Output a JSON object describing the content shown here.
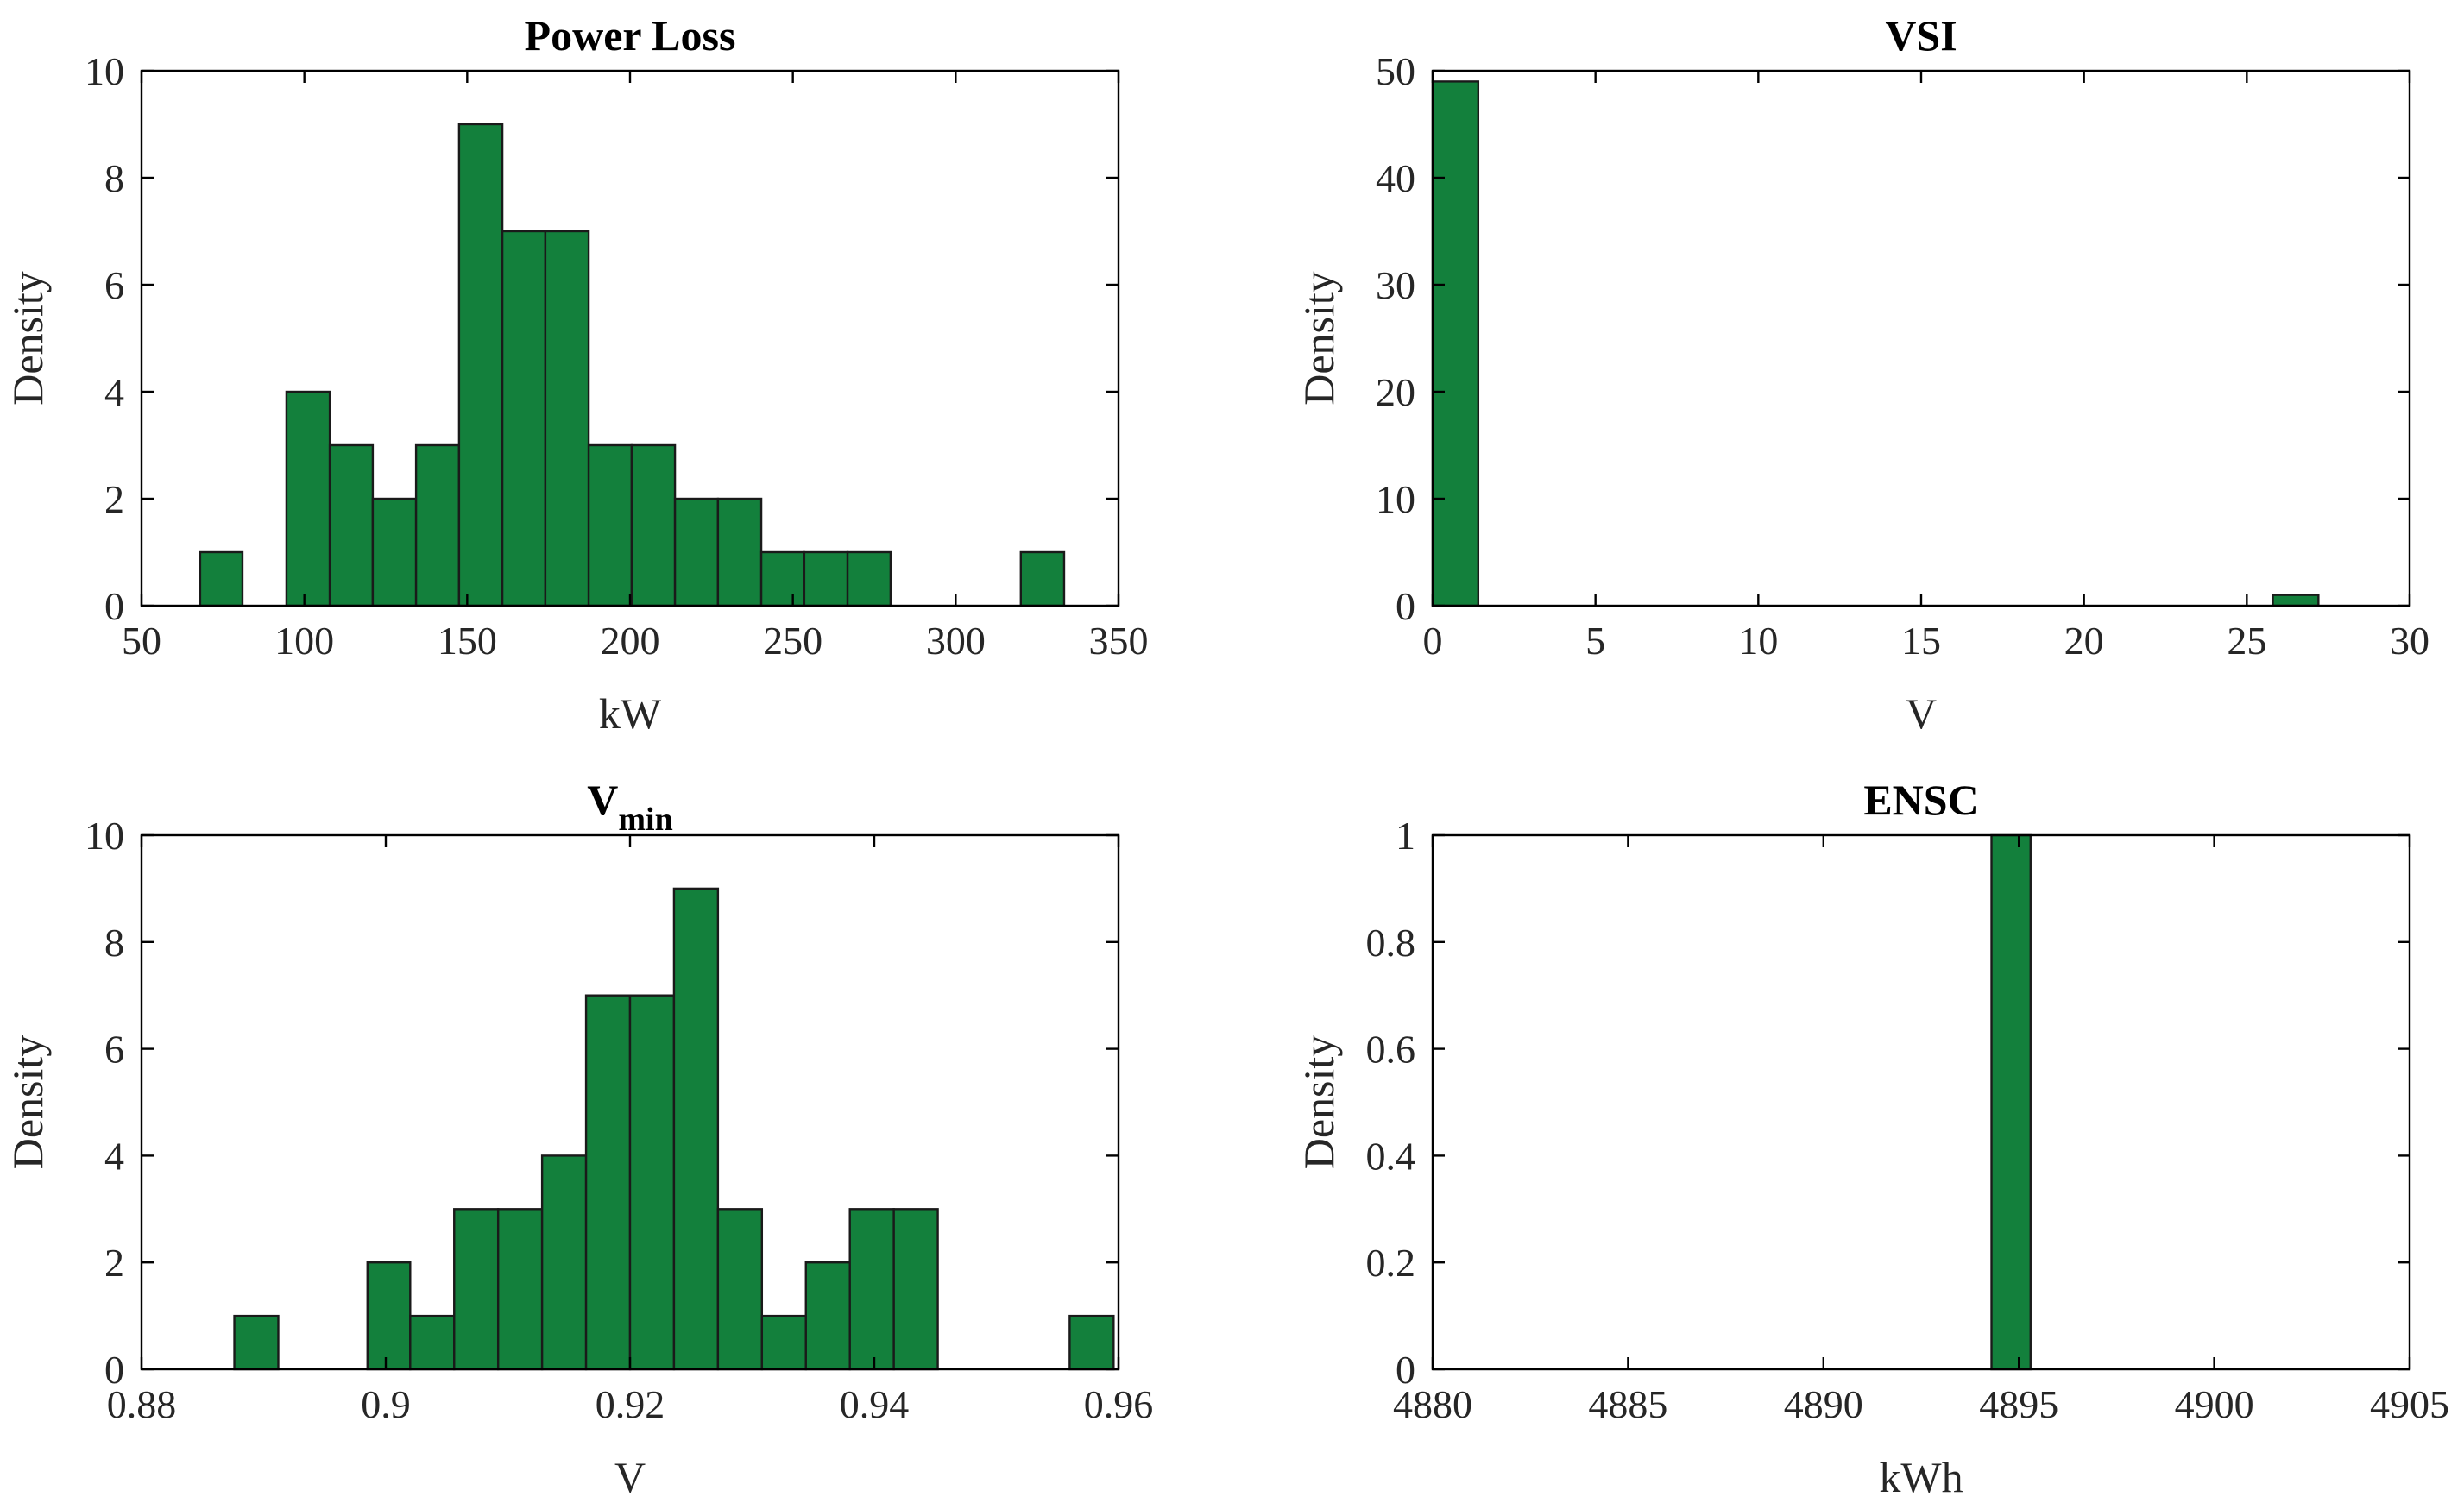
{
  "colors": {
    "bar_fill": "#13803c",
    "bar_edge": "#1a1a1a",
    "axis": "#000000"
  },
  "chart_data": [
    {
      "type": "bar",
      "title": "Power Loss",
      "xlabel": "kW",
      "ylabel": "Density",
      "xlim": [
        50,
        350
      ],
      "ylim": [
        0,
        10
      ],
      "xticks": [
        "50",
        "100",
        "150",
        "200",
        "250",
        "300",
        "350"
      ],
      "yticks": [
        "0",
        "2",
        "4",
        "6",
        "8",
        "10"
      ],
      "bins": [
        {
          "x0": 68,
          "x1": 81,
          "value": 1
        },
        {
          "x0": 94.5,
          "x1": 107.8,
          "value": 4
        },
        {
          "x0": 107.8,
          "x1": 121,
          "value": 3
        },
        {
          "x0": 121,
          "x1": 134.3,
          "value": 2
        },
        {
          "x0": 134.3,
          "x1": 147.5,
          "value": 3
        },
        {
          "x0": 147.5,
          "x1": 160.8,
          "value": 9
        },
        {
          "x0": 160.8,
          "x1": 174,
          "value": 7
        },
        {
          "x0": 174,
          "x1": 187.3,
          "value": 7
        },
        {
          "x0": 187.3,
          "x1": 200.5,
          "value": 3
        },
        {
          "x0": 200.5,
          "x1": 213.8,
          "value": 3
        },
        {
          "x0": 213.8,
          "x1": 227,
          "value": 2
        },
        {
          "x0": 227,
          "x1": 240.3,
          "value": 2
        },
        {
          "x0": 240.3,
          "x1": 253.5,
          "value": 1
        },
        {
          "x0": 253.5,
          "x1": 266.8,
          "value": 1
        },
        {
          "x0": 266.8,
          "x1": 280,
          "value": 1
        },
        {
          "x0": 320,
          "x1": 333.3,
          "value": 1
        }
      ]
    },
    {
      "type": "bar",
      "title": "VSI",
      "xlabel": "V",
      "ylabel": "Density",
      "xlim": [
        0,
        30
      ],
      "ylim": [
        0,
        50
      ],
      "xticks": [
        "0",
        "5",
        "10",
        "15",
        "20",
        "25",
        "30"
      ],
      "yticks": [
        "0",
        "10",
        "20",
        "30",
        "40",
        "50"
      ],
      "bins": [
        {
          "x0": 0,
          "x1": 1.4,
          "value": 49
        },
        {
          "x0": 25.8,
          "x1": 27.2,
          "value": 1
        }
      ]
    },
    {
      "type": "bar",
      "title": "V",
      "title_subscript": "min",
      "xlabel": "V",
      "ylabel": "Density",
      "xlim": [
        0.88,
        0.96
      ],
      "ylim": [
        0,
        10
      ],
      "xticks": [
        "0.88",
        "0.9",
        "0.92",
        "0.94",
        "0.96"
      ],
      "yticks": [
        "0",
        "2",
        "4",
        "6",
        "8",
        "10"
      ],
      "bins": [
        {
          "x0": 0.8876,
          "x1": 0.8912,
          "value": 1
        },
        {
          "x0": 0.8985,
          "x1": 0.902,
          "value": 2
        },
        {
          "x0": 0.902,
          "x1": 0.9056,
          "value": 1
        },
        {
          "x0": 0.9056,
          "x1": 0.9092,
          "value": 3
        },
        {
          "x0": 0.9092,
          "x1": 0.9128,
          "value": 3
        },
        {
          "x0": 0.9128,
          "x1": 0.9164,
          "value": 4
        },
        {
          "x0": 0.9164,
          "x1": 0.92,
          "value": 7
        },
        {
          "x0": 0.92,
          "x1": 0.9236,
          "value": 7
        },
        {
          "x0": 0.9236,
          "x1": 0.9272,
          "value": 9
        },
        {
          "x0": 0.9272,
          "x1": 0.9308,
          "value": 3
        },
        {
          "x0": 0.9308,
          "x1": 0.9344,
          "value": 1
        },
        {
          "x0": 0.9344,
          "x1": 0.938,
          "value": 2
        },
        {
          "x0": 0.938,
          "x1": 0.9416,
          "value": 3
        },
        {
          "x0": 0.9416,
          "x1": 0.9452,
          "value": 3
        },
        {
          "x0": 0.956,
          "x1": 0.9596,
          "value": 1
        }
      ]
    },
    {
      "type": "bar",
      "title": "ENSC",
      "xlabel": "kWh",
      "ylabel": "Density",
      "xlim": [
        4880,
        4905
      ],
      "ylim": [
        0,
        1
      ],
      "xticks": [
        "4880",
        "4885",
        "4890",
        "4895",
        "4900",
        "4905"
      ],
      "yticks": [
        "0",
        "0.2",
        "0.4",
        "0.6",
        "0.8",
        "1"
      ],
      "bins": [
        {
          "x0": 4894.3,
          "x1": 4895.3,
          "value": 1
        }
      ]
    }
  ]
}
